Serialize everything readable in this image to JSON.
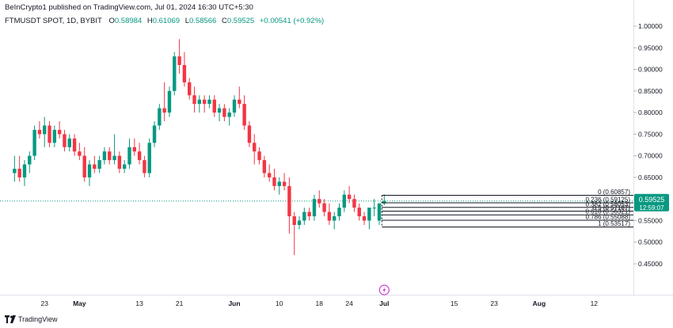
{
  "attribution": "BeInCrypto1 published on TradingView.com, Jul 01, 2024 16:30 UTC+5:30",
  "legend": {
    "symbol": "FTMUSDT SPOT, 1D, BYBIT",
    "o_label": "O",
    "o_value": "0.58984",
    "h_label": "H",
    "h_value": "0.61069",
    "l_label": "L",
    "l_value": "0.58566",
    "c_label": "C",
    "c_value": "0.59525",
    "change": "+0.00541 (+0.92%)"
  },
  "colors": {
    "up": "#089981",
    "down": "#f23645",
    "text": "#131722",
    "fib_line": "#131722",
    "grid": "#e0e3eb"
  },
  "footer": {
    "logo_icon": "tradingview-logo-icon",
    "brand": "TradingView"
  },
  "price_axis": {
    "ticks": [
      "1.00000",
      "0.95000",
      "0.90000",
      "0.85000",
      "0.80000",
      "0.75000",
      "0.70000",
      "0.65000",
      "0.60000",
      "0.55000",
      "0.50000",
      "0.45000"
    ],
    "last_price": "0.59525",
    "countdown": "12:59:07"
  },
  "time_axis": [
    {
      "label": "23",
      "day": -38
    },
    {
      "label": "May",
      "day": -31
    },
    {
      "label": "13",
      "day": -19
    },
    {
      "label": "21",
      "day": -11
    },
    {
      "label": "Jun",
      "day": 0
    },
    {
      "label": "10",
      "day": 9
    },
    {
      "label": "18",
      "day": 17
    },
    {
      "label": "24",
      "day": 23
    },
    {
      "label": "Jul",
      "day": 30
    },
    {
      "label": "15",
      "day": 44
    },
    {
      "label": "23",
      "day": 52
    },
    {
      "label": "Aug",
      "day": 61
    },
    {
      "label": "12",
      "day": 72
    }
  ],
  "fib_levels": [
    {
      "label": "0 (0.60857)",
      "price": 0.60857
    },
    {
      "label": "0.236 (0.59125)",
      "price": 0.59125
    },
    {
      "label": "0.382 (0.58053)",
      "price": 0.58053
    },
    {
      "label": "0.5 (0.57187)",
      "price": 0.57187
    },
    {
      "label": "0.618 (0.56321)",
      "price": 0.56321
    },
    {
      "label": "0.786 (0.55088)",
      "price": 0.55088
    },
    {
      "label": "1 (0.53517)",
      "price": 0.53517
    }
  ],
  "chart_data": {
    "type": "candlestick",
    "symbol": "FTMUSDT",
    "x_unit": "days relative to Jun 1 2024",
    "ylim": [
      0.43,
      1.02
    ],
    "candles": [
      {
        "d": -44,
        "o": 0.66,
        "h": 0.7,
        "l": 0.64,
        "c": 0.67
      },
      {
        "d": -43,
        "o": 0.67,
        "h": 0.7,
        "l": 0.64,
        "c": 0.65
      },
      {
        "d": -42,
        "o": 0.65,
        "h": 0.69,
        "l": 0.63,
        "c": 0.68
      },
      {
        "d": -41,
        "o": 0.68,
        "h": 0.71,
        "l": 0.66,
        "c": 0.7
      },
      {
        "d": -40,
        "o": 0.7,
        "h": 0.77,
        "l": 0.69,
        "c": 0.76
      },
      {
        "d": -39,
        "o": 0.76,
        "h": 0.78,
        "l": 0.74,
        "c": 0.75
      },
      {
        "d": -38,
        "o": 0.75,
        "h": 0.79,
        "l": 0.72,
        "c": 0.77
      },
      {
        "d": -37,
        "o": 0.77,
        "h": 0.78,
        "l": 0.72,
        "c": 0.73
      },
      {
        "d": -36,
        "o": 0.73,
        "h": 0.77,
        "l": 0.72,
        "c": 0.76
      },
      {
        "d": -35,
        "o": 0.76,
        "h": 0.78,
        "l": 0.74,
        "c": 0.75
      },
      {
        "d": -34,
        "o": 0.75,
        "h": 0.76,
        "l": 0.71,
        "c": 0.72
      },
      {
        "d": -33,
        "o": 0.72,
        "h": 0.75,
        "l": 0.71,
        "c": 0.74
      },
      {
        "d": -32,
        "o": 0.74,
        "h": 0.75,
        "l": 0.7,
        "c": 0.71
      },
      {
        "d": -31,
        "o": 0.71,
        "h": 0.73,
        "l": 0.69,
        "c": 0.7
      },
      {
        "d": -30,
        "o": 0.7,
        "h": 0.72,
        "l": 0.64,
        "c": 0.65
      },
      {
        "d": -29,
        "o": 0.65,
        "h": 0.69,
        "l": 0.63,
        "c": 0.68
      },
      {
        "d": -28,
        "o": 0.68,
        "h": 0.7,
        "l": 0.66,
        "c": 0.67
      },
      {
        "d": -27,
        "o": 0.67,
        "h": 0.7,
        "l": 0.66,
        "c": 0.69
      },
      {
        "d": -26,
        "o": 0.69,
        "h": 0.72,
        "l": 0.68,
        "c": 0.71
      },
      {
        "d": -25,
        "o": 0.71,
        "h": 0.72,
        "l": 0.68,
        "c": 0.69
      },
      {
        "d": -24,
        "o": 0.69,
        "h": 0.75,
        "l": 0.68,
        "c": 0.7
      },
      {
        "d": -23,
        "o": 0.7,
        "h": 0.71,
        "l": 0.66,
        "c": 0.67
      },
      {
        "d": -22,
        "o": 0.67,
        "h": 0.69,
        "l": 0.66,
        "c": 0.68
      },
      {
        "d": -21,
        "o": 0.68,
        "h": 0.74,
        "l": 0.67,
        "c": 0.72
      },
      {
        "d": -20,
        "o": 0.72,
        "h": 0.74,
        "l": 0.7,
        "c": 0.71
      },
      {
        "d": -19,
        "o": 0.71,
        "h": 0.73,
        "l": 0.68,
        "c": 0.69
      },
      {
        "d": -18,
        "o": 0.69,
        "h": 0.7,
        "l": 0.65,
        "c": 0.66
      },
      {
        "d": -17,
        "o": 0.66,
        "h": 0.74,
        "l": 0.65,
        "c": 0.73
      },
      {
        "d": -16,
        "o": 0.73,
        "h": 0.78,
        "l": 0.72,
        "c": 0.77
      },
      {
        "d": -15,
        "o": 0.77,
        "h": 0.82,
        "l": 0.76,
        "c": 0.81
      },
      {
        "d": -14,
        "o": 0.81,
        "h": 0.87,
        "l": 0.78,
        "c": 0.8
      },
      {
        "d": -13,
        "o": 0.8,
        "h": 0.86,
        "l": 0.79,
        "c": 0.85
      },
      {
        "d": -12,
        "o": 0.85,
        "h": 0.94,
        "l": 0.84,
        "c": 0.93
      },
      {
        "d": -11,
        "o": 0.93,
        "h": 0.97,
        "l": 0.89,
        "c": 0.91
      },
      {
        "d": -10,
        "o": 0.91,
        "h": 0.94,
        "l": 0.86,
        "c": 0.87
      },
      {
        "d": -9,
        "o": 0.87,
        "h": 0.88,
        "l": 0.83,
        "c": 0.84
      },
      {
        "d": -8,
        "o": 0.84,
        "h": 0.86,
        "l": 0.8,
        "c": 0.82
      },
      {
        "d": -7,
        "o": 0.82,
        "h": 0.84,
        "l": 0.8,
        "c": 0.83
      },
      {
        "d": -6,
        "o": 0.83,
        "h": 0.84,
        "l": 0.8,
        "c": 0.82
      },
      {
        "d": -5,
        "o": 0.82,
        "h": 0.84,
        "l": 0.81,
        "c": 0.83
      },
      {
        "d": -4,
        "o": 0.83,
        "h": 0.84,
        "l": 0.79,
        "c": 0.8
      },
      {
        "d": -3,
        "o": 0.8,
        "h": 0.82,
        "l": 0.78,
        "c": 0.81
      },
      {
        "d": -2,
        "o": 0.81,
        "h": 0.82,
        "l": 0.78,
        "c": 0.79
      },
      {
        "d": -1,
        "o": 0.79,
        "h": 0.81,
        "l": 0.77,
        "c": 0.8
      },
      {
        "d": 0,
        "o": 0.8,
        "h": 0.84,
        "l": 0.79,
        "c": 0.83
      },
      {
        "d": 1,
        "o": 0.83,
        "h": 0.86,
        "l": 0.81,
        "c": 0.82
      },
      {
        "d": 2,
        "o": 0.82,
        "h": 0.84,
        "l": 0.76,
        "c": 0.77
      },
      {
        "d": 3,
        "o": 0.77,
        "h": 0.78,
        "l": 0.72,
        "c": 0.73
      },
      {
        "d": 4,
        "o": 0.73,
        "h": 0.75,
        "l": 0.68,
        "c": 0.71
      },
      {
        "d": 5,
        "o": 0.71,
        "h": 0.72,
        "l": 0.68,
        "c": 0.69
      },
      {
        "d": 6,
        "o": 0.69,
        "h": 0.7,
        "l": 0.65,
        "c": 0.66
      },
      {
        "d": 7,
        "o": 0.66,
        "h": 0.68,
        "l": 0.64,
        "c": 0.65
      },
      {
        "d": 8,
        "o": 0.65,
        "h": 0.67,
        "l": 0.62,
        "c": 0.63
      },
      {
        "d": 9,
        "o": 0.63,
        "h": 0.65,
        "l": 0.61,
        "c": 0.64
      },
      {
        "d": 10,
        "o": 0.64,
        "h": 0.66,
        "l": 0.62,
        "c": 0.63
      },
      {
        "d": 11,
        "o": 0.63,
        "h": 0.65,
        "l": 0.52,
        "c": 0.56
      },
      {
        "d": 12,
        "o": 0.56,
        "h": 0.57,
        "l": 0.47,
        "c": 0.54
      },
      {
        "d": 13,
        "o": 0.54,
        "h": 0.56,
        "l": 0.53,
        "c": 0.55
      },
      {
        "d": 14,
        "o": 0.55,
        "h": 0.58,
        "l": 0.54,
        "c": 0.57
      },
      {
        "d": 15,
        "o": 0.57,
        "h": 0.58,
        "l": 0.55,
        "c": 0.56
      },
      {
        "d": 16,
        "o": 0.56,
        "h": 0.61,
        "l": 0.55,
        "c": 0.6
      },
      {
        "d": 17,
        "o": 0.6,
        "h": 0.62,
        "l": 0.58,
        "c": 0.59
      },
      {
        "d": 18,
        "o": 0.59,
        "h": 0.6,
        "l": 0.56,
        "c": 0.57
      },
      {
        "d": 19,
        "o": 0.57,
        "h": 0.59,
        "l": 0.54,
        "c": 0.55
      },
      {
        "d": 20,
        "o": 0.55,
        "h": 0.57,
        "l": 0.53,
        "c": 0.56
      },
      {
        "d": 21,
        "o": 0.56,
        "h": 0.59,
        "l": 0.55,
        "c": 0.58
      },
      {
        "d": 22,
        "o": 0.58,
        "h": 0.62,
        "l": 0.57,
        "c": 0.61
      },
      {
        "d": 23,
        "o": 0.61,
        "h": 0.63,
        "l": 0.59,
        "c": 0.6
      },
      {
        "d": 24,
        "o": 0.6,
        "h": 0.61,
        "l": 0.57,
        "c": 0.58
      },
      {
        "d": 25,
        "o": 0.58,
        "h": 0.59,
        "l": 0.55,
        "c": 0.56
      },
      {
        "d": 26,
        "o": 0.56,
        "h": 0.57,
        "l": 0.54,
        "c": 0.55
      },
      {
        "d": 27,
        "o": 0.55,
        "h": 0.58,
        "l": 0.53,
        "c": 0.58
      },
      {
        "d": 28,
        "o": 0.58,
        "h": 0.6,
        "l": 0.56,
        "c": 0.58
      },
      {
        "d": 29,
        "o": 0.55,
        "h": 0.59,
        "l": 0.54,
        "c": 0.59
      },
      {
        "d": 30,
        "o": 0.58984,
        "h": 0.61069,
        "l": 0.58566,
        "c": 0.59525
      }
    ]
  }
}
